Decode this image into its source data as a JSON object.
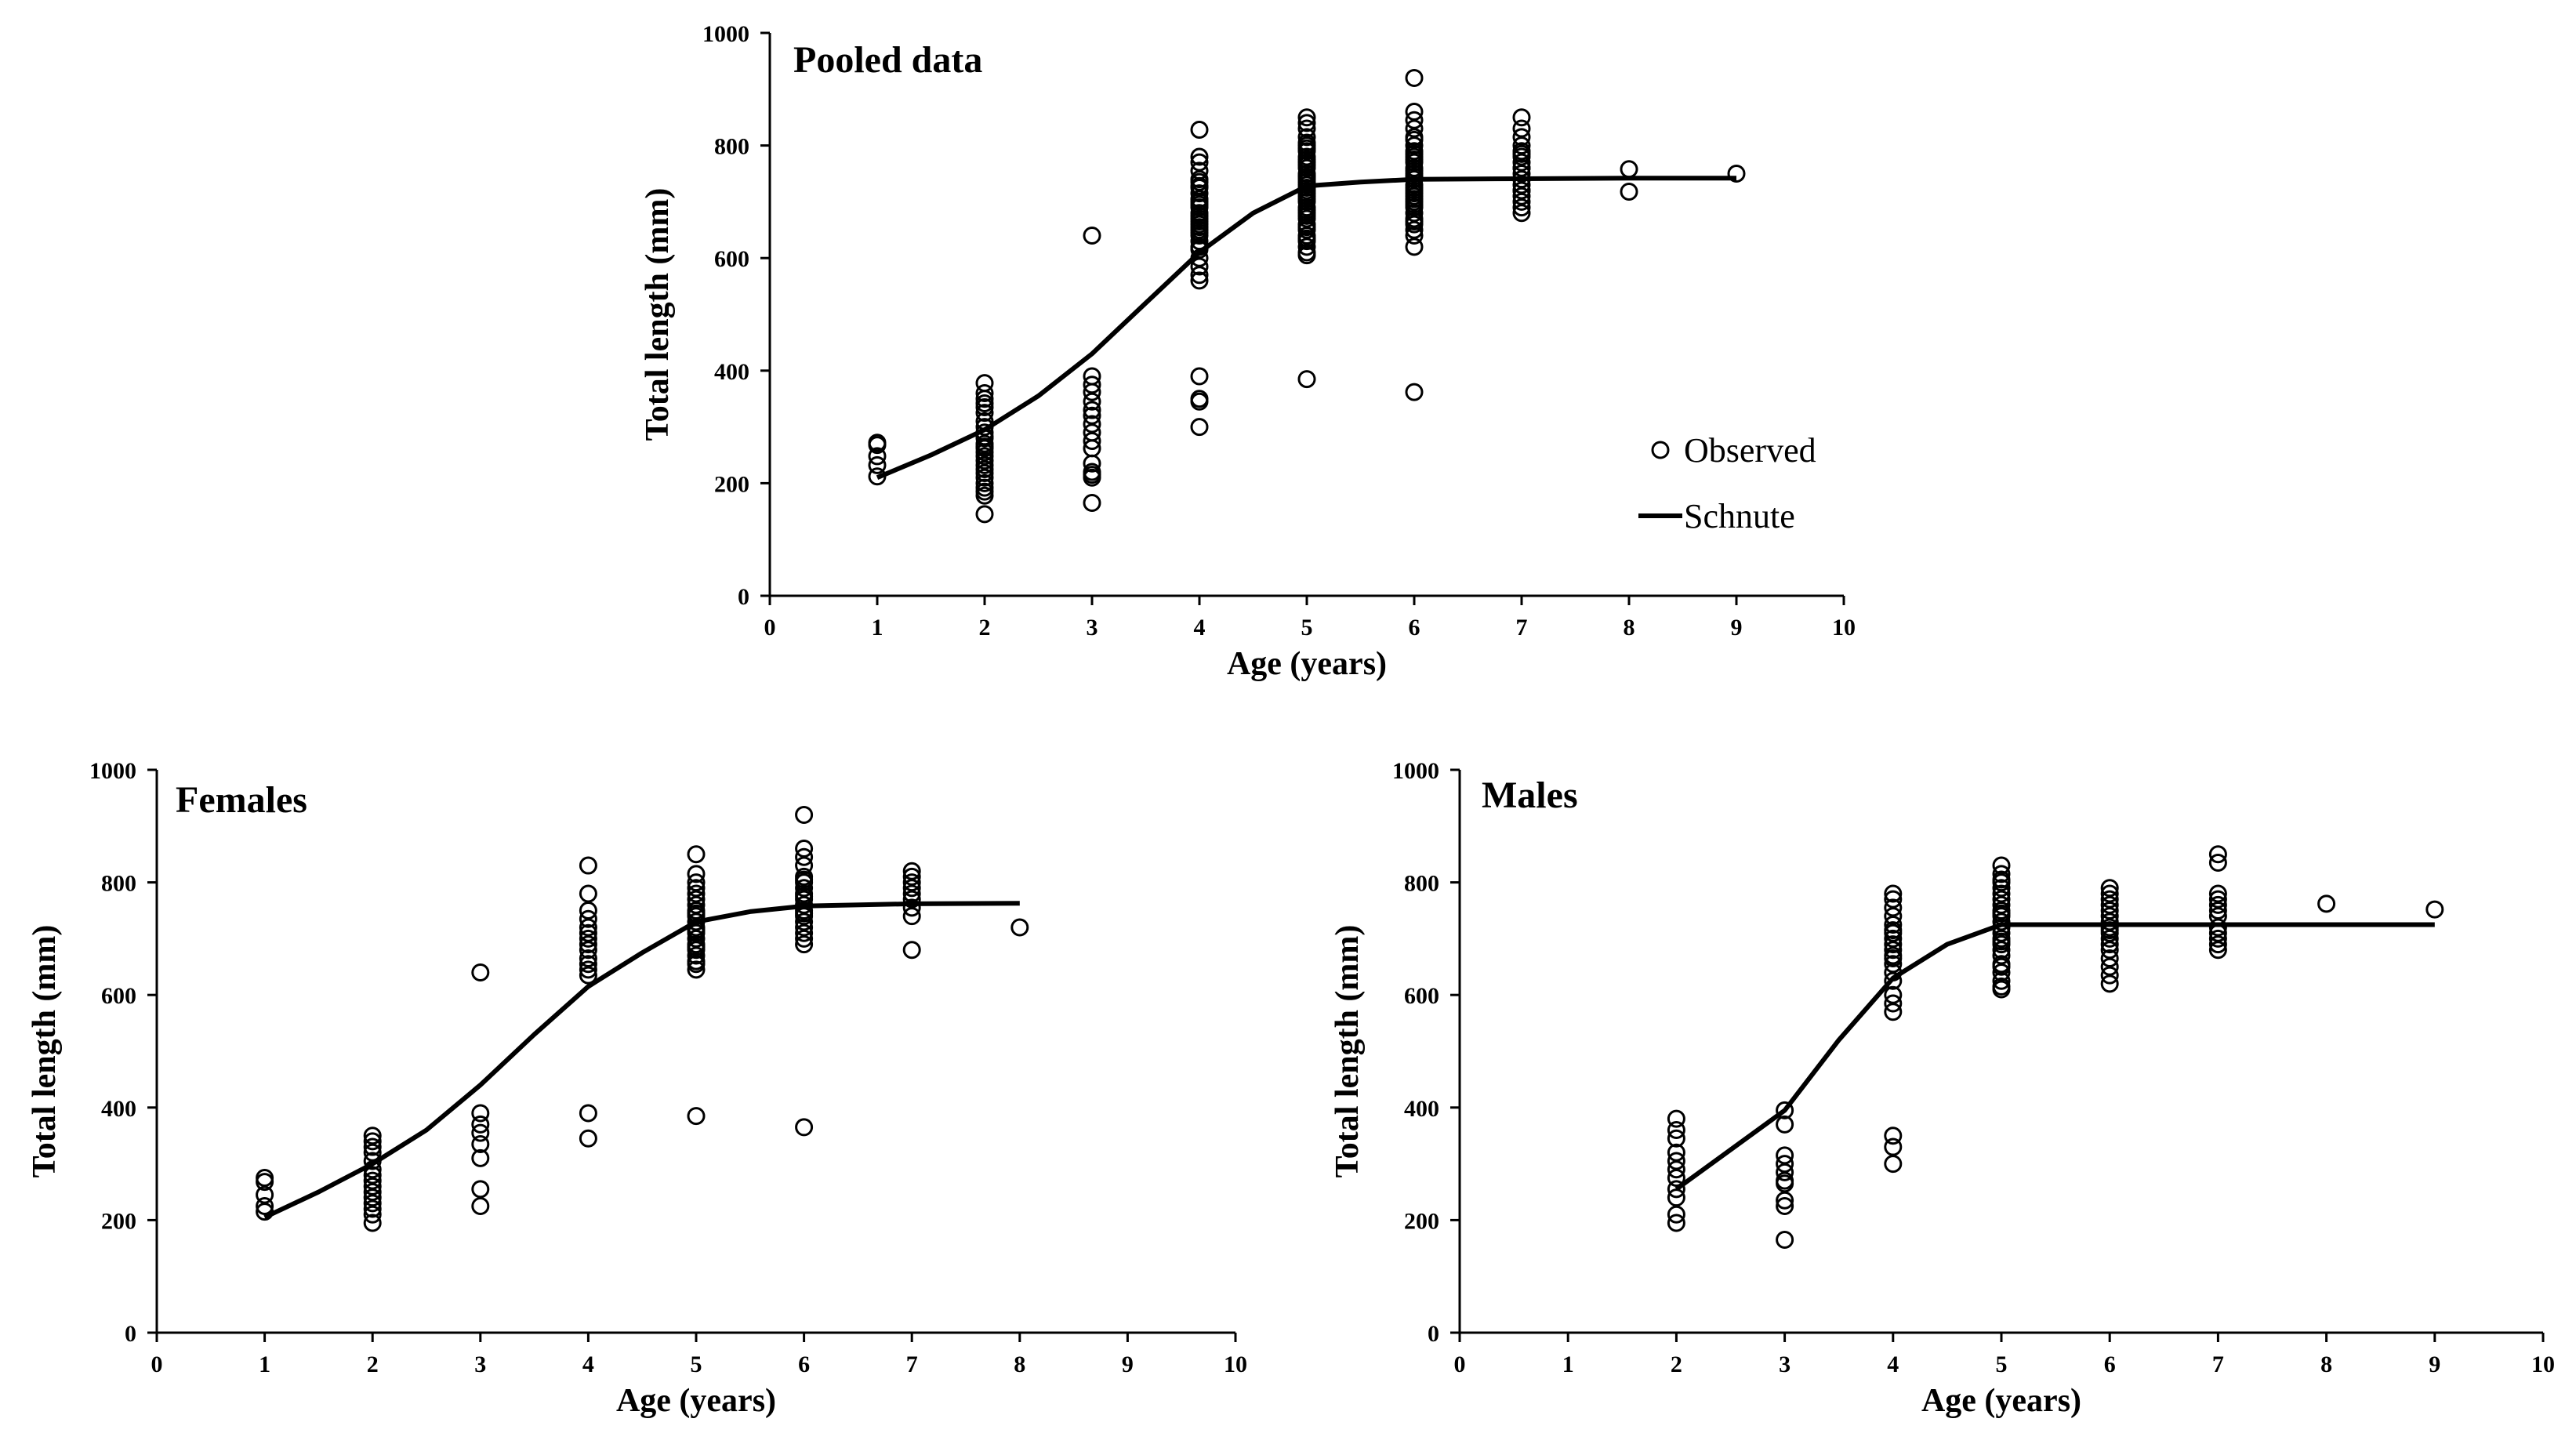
{
  "chart_data": [
    {
      "id": "pooled",
      "type": "scatter",
      "title": "Pooled data",
      "xlabel": "Age (years)",
      "ylabel": "Total length (mm)",
      "xlim": [
        0,
        10
      ],
      "ylim": [
        0,
        1000
      ],
      "xticks": [
        0,
        1,
        2,
        3,
        4,
        5,
        6,
        7,
        8,
        9,
        10
      ],
      "yticks": [
        0,
        200,
        400,
        600,
        800,
        1000
      ],
      "legend": {
        "placement": "center-right",
        "observed_label": "Observed",
        "fit_label": "Schnute"
      },
      "series": [
        {
          "name": "Observed",
          "kind": "points",
          "x": [
            1,
            1,
            1,
            1,
            1,
            2,
            2,
            2,
            2,
            2,
            2,
            2,
            2,
            2,
            2,
            2,
            2,
            2,
            2,
            2,
            2,
            2,
            2,
            2,
            2,
            2,
            2,
            2,
            2,
            2,
            2,
            3,
            3,
            3,
            3,
            3,
            3,
            3,
            3,
            3,
            3,
            3,
            3,
            3,
            3,
            3,
            3,
            4,
            4,
            4,
            4,
            4,
            4,
            4,
            4,
            4,
            4,
            4,
            4,
            4,
            4,
            4,
            4,
            4,
            4,
            4,
            4,
            4,
            4,
            4,
            4,
            4,
            4,
            4,
            4,
            4,
            4,
            4,
            4,
            4,
            5,
            5,
            5,
            5,
            5,
            5,
            5,
            5,
            5,
            5,
            5,
            5,
            5,
            5,
            5,
            5,
            5,
            5,
            5,
            5,
            5,
            5,
            5,
            5,
            5,
            5,
            5,
            5,
            5,
            5,
            5,
            5,
            5,
            5,
            5,
            5,
            5,
            5,
            5,
            5,
            6,
            6,
            6,
            6,
            6,
            6,
            6,
            6,
            6,
            6,
            6,
            6,
            6,
            6,
            6,
            6,
            6,
            6,
            6,
            6,
            6,
            6,
            6,
            6,
            6,
            6,
            6,
            6,
            6,
            6,
            6,
            6,
            6,
            6,
            7,
            7,
            7,
            7,
            7,
            7,
            7,
            7,
            7,
            7,
            7,
            7,
            7,
            7,
            7,
            7,
            7,
            7,
            7,
            7,
            8,
            8,
            9
          ],
          "y": [
            272,
            268,
            248,
            232,
            212,
            378,
            360,
            350,
            342,
            335,
            325,
            310,
            300,
            290,
            280,
            270,
            262,
            255,
            248,
            240,
            232,
            225,
            218,
            210,
            200,
            192,
            185,
            178,
            265,
            283,
            145,
            640,
            390,
            375,
            362,
            345,
            330,
            320,
            305,
            290,
            275,
            262,
            235,
            220,
            215,
            210,
            165,
            828,
            780,
            770,
            755,
            740,
            728,
            715,
            700,
            690,
            680,
            670,
            660,
            650,
            640,
            630,
            615,
            600,
            585,
            570,
            560,
            390,
            350,
            345,
            300,
            735,
            705,
            675,
            645,
            620,
            725,
            695,
            665,
            655,
            850,
            840,
            830,
            815,
            800,
            790,
            780,
            770,
            760,
            750,
            740,
            730,
            720,
            710,
            700,
            690,
            680,
            670,
            660,
            650,
            640,
            630,
            620,
            610,
            605,
            385,
            795,
            765,
            745,
            725,
            705,
            685,
            675,
            655,
            735,
            715,
            745,
            775,
            805,
            635,
            920,
            860,
            845,
            830,
            815,
            800,
            790,
            780,
            770,
            760,
            750,
            740,
            730,
            720,
            710,
            700,
            690,
            680,
            670,
            660,
            650,
            640,
            620,
            362,
            810,
            785,
            755,
            725,
            695,
            665,
            745,
            715,
            775,
            705,
            850,
            830,
            815,
            800,
            790,
            780,
            770,
            760,
            750,
            740,
            730,
            720,
            710,
            700,
            690,
            680,
            760,
            740,
            720,
            785,
            758,
            718,
            750
          ]
        },
        {
          "name": "Schnute",
          "kind": "line",
          "x": [
            1,
            1.5,
            2,
            2.5,
            3,
            3.5,
            4,
            4.5,
            5,
            5.5,
            6,
            7,
            8,
            9
          ],
          "y": [
            210,
            250,
            295,
            355,
            430,
            520,
            610,
            680,
            728,
            735,
            740,
            741,
            742,
            742
          ]
        }
      ]
    },
    {
      "id": "females",
      "type": "scatter",
      "title": "Females",
      "xlabel": "Age (years)",
      "ylabel": "Total length (mm)",
      "xlim": [
        0,
        10
      ],
      "ylim": [
        0,
        1000
      ],
      "xticks": [
        0,
        1,
        2,
        3,
        4,
        5,
        6,
        7,
        8,
        9,
        10
      ],
      "yticks": [
        0,
        200,
        400,
        600,
        800,
        1000
      ],
      "series": [
        {
          "name": "Observed",
          "kind": "points",
          "x": [
            1,
            1,
            1,
            1,
            1,
            2,
            2,
            2,
            2,
            2,
            2,
            2,
            2,
            2,
            2,
            2,
            2,
            2,
            2,
            2,
            3,
            3,
            3,
            3,
            3,
            3,
            3,
            3,
            4,
            4,
            4,
            4,
            4,
            4,
            4,
            4,
            4,
            4,
            4,
            4,
            4,
            4,
            4,
            5,
            5,
            5,
            5,
            5,
            5,
            5,
            5,
            5,
            5,
            5,
            5,
            5,
            5,
            5,
            5,
            5,
            5,
            5,
            5,
            5,
            5,
            5,
            6,
            6,
            6,
            6,
            6,
            6,
            6,
            6,
            6,
            6,
            6,
            6,
            6,
            6,
            6,
            6,
            6,
            6,
            6,
            6,
            6,
            7,
            7,
            7,
            7,
            7,
            7,
            7,
            7,
            7,
            8
          ],
          "y": [
            275,
            268,
            245,
            225,
            215,
            350,
            340,
            330,
            320,
            305,
            290,
            280,
            270,
            260,
            250,
            240,
            230,
            220,
            210,
            195,
            640,
            390,
            370,
            355,
            335,
            310,
            255,
            225,
            830,
            780,
            750,
            735,
            720,
            700,
            690,
            680,
            665,
            655,
            645,
            635,
            390,
            345,
            710,
            850,
            815,
            790,
            780,
            770,
            760,
            750,
            740,
            730,
            720,
            710,
            700,
            690,
            680,
            670,
            660,
            645,
            385,
            800,
            745,
            715,
            685,
            655,
            920,
            860,
            845,
            830,
            810,
            800,
            790,
            780,
            770,
            760,
            750,
            740,
            730,
            720,
            710,
            700,
            690,
            365,
            805,
            775,
            745,
            820,
            810,
            800,
            790,
            780,
            770,
            755,
            740,
            680,
            720
          ]
        },
        {
          "name": "Schnute",
          "kind": "line",
          "x": [
            1,
            1.5,
            2,
            2.5,
            3,
            3.5,
            4,
            4.5,
            5,
            5.5,
            6,
            7,
            8
          ],
          "y": [
            205,
            250,
            300,
            360,
            440,
            530,
            615,
            675,
            730,
            748,
            758,
            762,
            763
          ]
        }
      ]
    },
    {
      "id": "males",
      "type": "scatter",
      "title": "Males",
      "xlabel": "Age (years)",
      "ylabel": "Total length (mm)",
      "xlim": [
        0,
        10
      ],
      "ylim": [
        0,
        1000
      ],
      "xticks": [
        0,
        1,
        2,
        3,
        4,
        5,
        6,
        7,
        8,
        9,
        10
      ],
      "yticks": [
        0,
        200,
        400,
        600,
        800,
        1000
      ],
      "series": [
        {
          "name": "Observed",
          "kind": "points",
          "x": [
            2,
            2,
            2,
            2,
            2,
            2,
            2,
            2,
            2,
            2,
            2,
            3,
            3,
            3,
            3,
            3,
            3,
            3,
            3,
            3,
            3,
            4,
            4,
            4,
            4,
            4,
            4,
            4,
            4,
            4,
            4,
            4,
            4,
            4,
            4,
            4,
            4,
            4,
            4,
            4,
            4,
            4,
            5,
            5,
            5,
            5,
            5,
            5,
            5,
            5,
            5,
            5,
            5,
            5,
            5,
            5,
            5,
            5,
            5,
            5,
            5,
            5,
            5,
            5,
            5,
            5,
            5,
            6,
            6,
            6,
            6,
            6,
            6,
            6,
            6,
            6,
            6,
            6,
            6,
            6,
            6,
            6,
            6,
            6,
            7,
            7,
            7,
            7,
            7,
            7,
            7,
            7,
            7,
            7,
            7,
            7,
            8,
            9
          ],
          "y": [
            380,
            360,
            345,
            320,
            305,
            290,
            275,
            255,
            240,
            210,
            195,
            395,
            370,
            315,
            300,
            285,
            270,
            265,
            235,
            225,
            165,
            780,
            770,
            755,
            740,
            725,
            710,
            700,
            690,
            680,
            670,
            655,
            640,
            625,
            600,
            585,
            570,
            350,
            330,
            300,
            715,
            665,
            830,
            815,
            800,
            790,
            780,
            770,
            760,
            750,
            740,
            730,
            720,
            710,
            700,
            690,
            680,
            670,
            655,
            640,
            625,
            610,
            805,
            745,
            695,
            650,
            615,
            790,
            780,
            770,
            760,
            750,
            740,
            730,
            720,
            710,
            700,
            690,
            680,
            665,
            650,
            635,
            620,
            715,
            850,
            835,
            780,
            770,
            760,
            750,
            740,
            720,
            710,
            700,
            690,
            680,
            762,
            752
          ]
        },
        {
          "name": "Schnute",
          "kind": "line",
          "x": [
            2,
            2.5,
            3,
            3.5,
            4,
            4.5,
            5,
            6,
            7,
            8,
            9
          ],
          "y": [
            255,
            325,
            395,
            520,
            630,
            690,
            725,
            725,
            725,
            725,
            725
          ]
        }
      ]
    }
  ]
}
